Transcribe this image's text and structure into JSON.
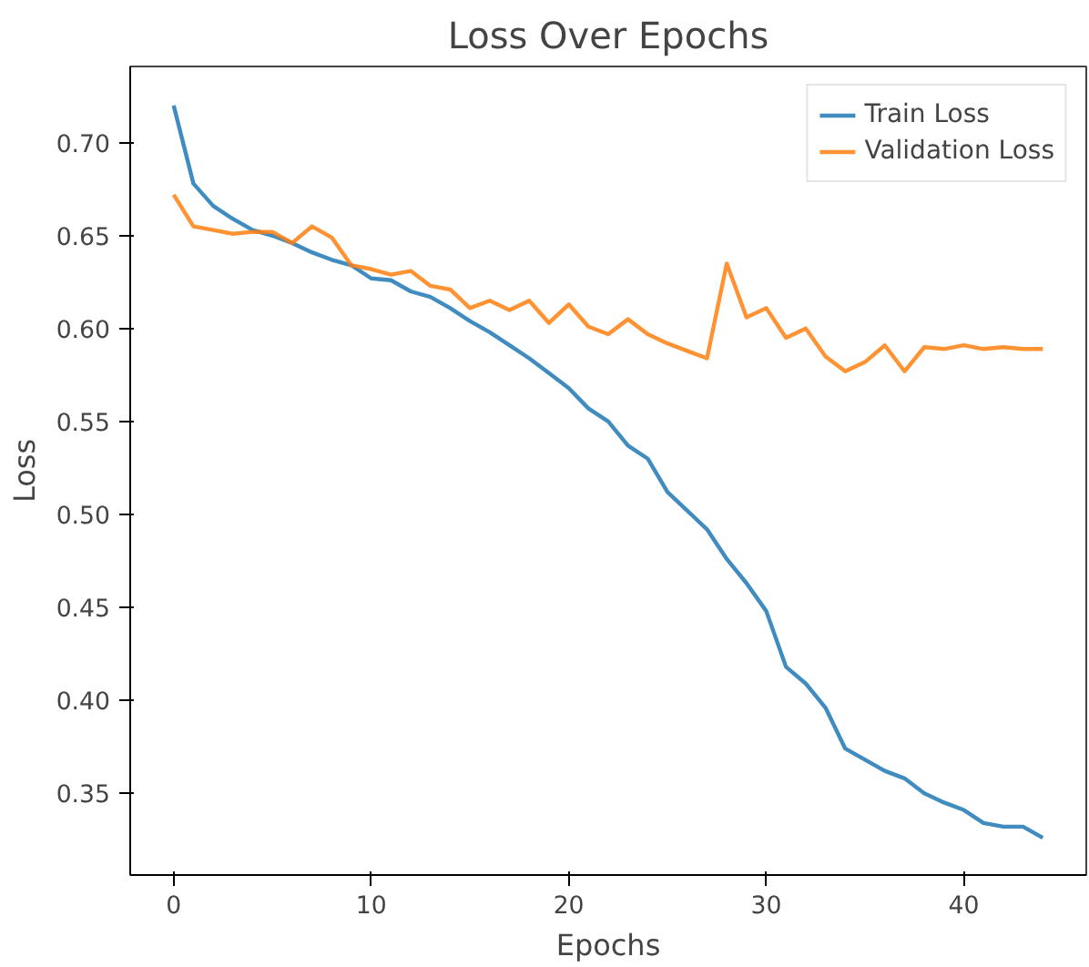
{
  "chart_data": {
    "type": "line",
    "title": "Loss Over Epochs",
    "xlabel": "Epochs",
    "ylabel": "Loss",
    "x": [
      0,
      1,
      2,
      3,
      4,
      5,
      6,
      7,
      8,
      9,
      10,
      11,
      12,
      13,
      14,
      15,
      16,
      17,
      18,
      19,
      20,
      21,
      22,
      23,
      24,
      25,
      26,
      27,
      28,
      29,
      30,
      31,
      32,
      33,
      34,
      35,
      36,
      37,
      38,
      39,
      40,
      41,
      42,
      43,
      44
    ],
    "series": [
      {
        "name": "Train Loss",
        "color": "#1f77b4",
        "values": [
          0.72,
          0.678,
          0.666,
          0.659,
          0.653,
          0.65,
          0.646,
          0.641,
          0.637,
          0.634,
          0.627,
          0.626,
          0.62,
          0.617,
          0.611,
          0.604,
          0.598,
          0.591,
          0.584,
          0.576,
          0.568,
          0.557,
          0.55,
          0.537,
          0.53,
          0.512,
          0.502,
          0.492,
          0.476,
          0.463,
          0.448,
          0.418,
          0.409,
          0.396,
          0.374,
          0.368,
          0.362,
          0.358,
          0.35,
          0.345,
          0.341,
          0.334,
          0.332,
          0.332,
          0.326
        ]
      },
      {
        "name": "Validation Loss",
        "color": "#ff7f0e",
        "values": [
          0.672,
          0.655,
          0.653,
          0.651,
          0.652,
          0.652,
          0.646,
          0.655,
          0.649,
          0.634,
          0.632,
          0.629,
          0.631,
          0.623,
          0.621,
          0.611,
          0.615,
          0.61,
          0.615,
          0.603,
          0.613,
          0.601,
          0.597,
          0.605,
          0.597,
          0.592,
          0.588,
          0.584,
          0.635,
          0.606,
          0.611,
          0.595,
          0.6,
          0.585,
          0.577,
          0.582,
          0.591,
          0.577,
          0.59,
          0.589,
          0.591,
          0.589,
          0.59,
          0.589,
          0.589
        ]
      }
    ],
    "xlim": [
      -2.2,
      46.2
    ],
    "ylim": [
      0.306,
      0.741
    ],
    "xticks": [
      0,
      10,
      20,
      30,
      40
    ],
    "yticks": [
      {
        "value": 0.35,
        "label": "0.35"
      },
      {
        "value": 0.4,
        "label": "0.40"
      },
      {
        "value": 0.45,
        "label": "0.45"
      },
      {
        "value": 0.5,
        "label": "0.50"
      },
      {
        "value": 0.55,
        "label": "0.55"
      },
      {
        "value": 0.6,
        "label": "0.60"
      },
      {
        "value": 0.65,
        "label": "0.65"
      },
      {
        "value": 0.7,
        "label": "0.70"
      }
    ],
    "grid": false,
    "legend": "top right",
    "line_style": "solid"
  }
}
